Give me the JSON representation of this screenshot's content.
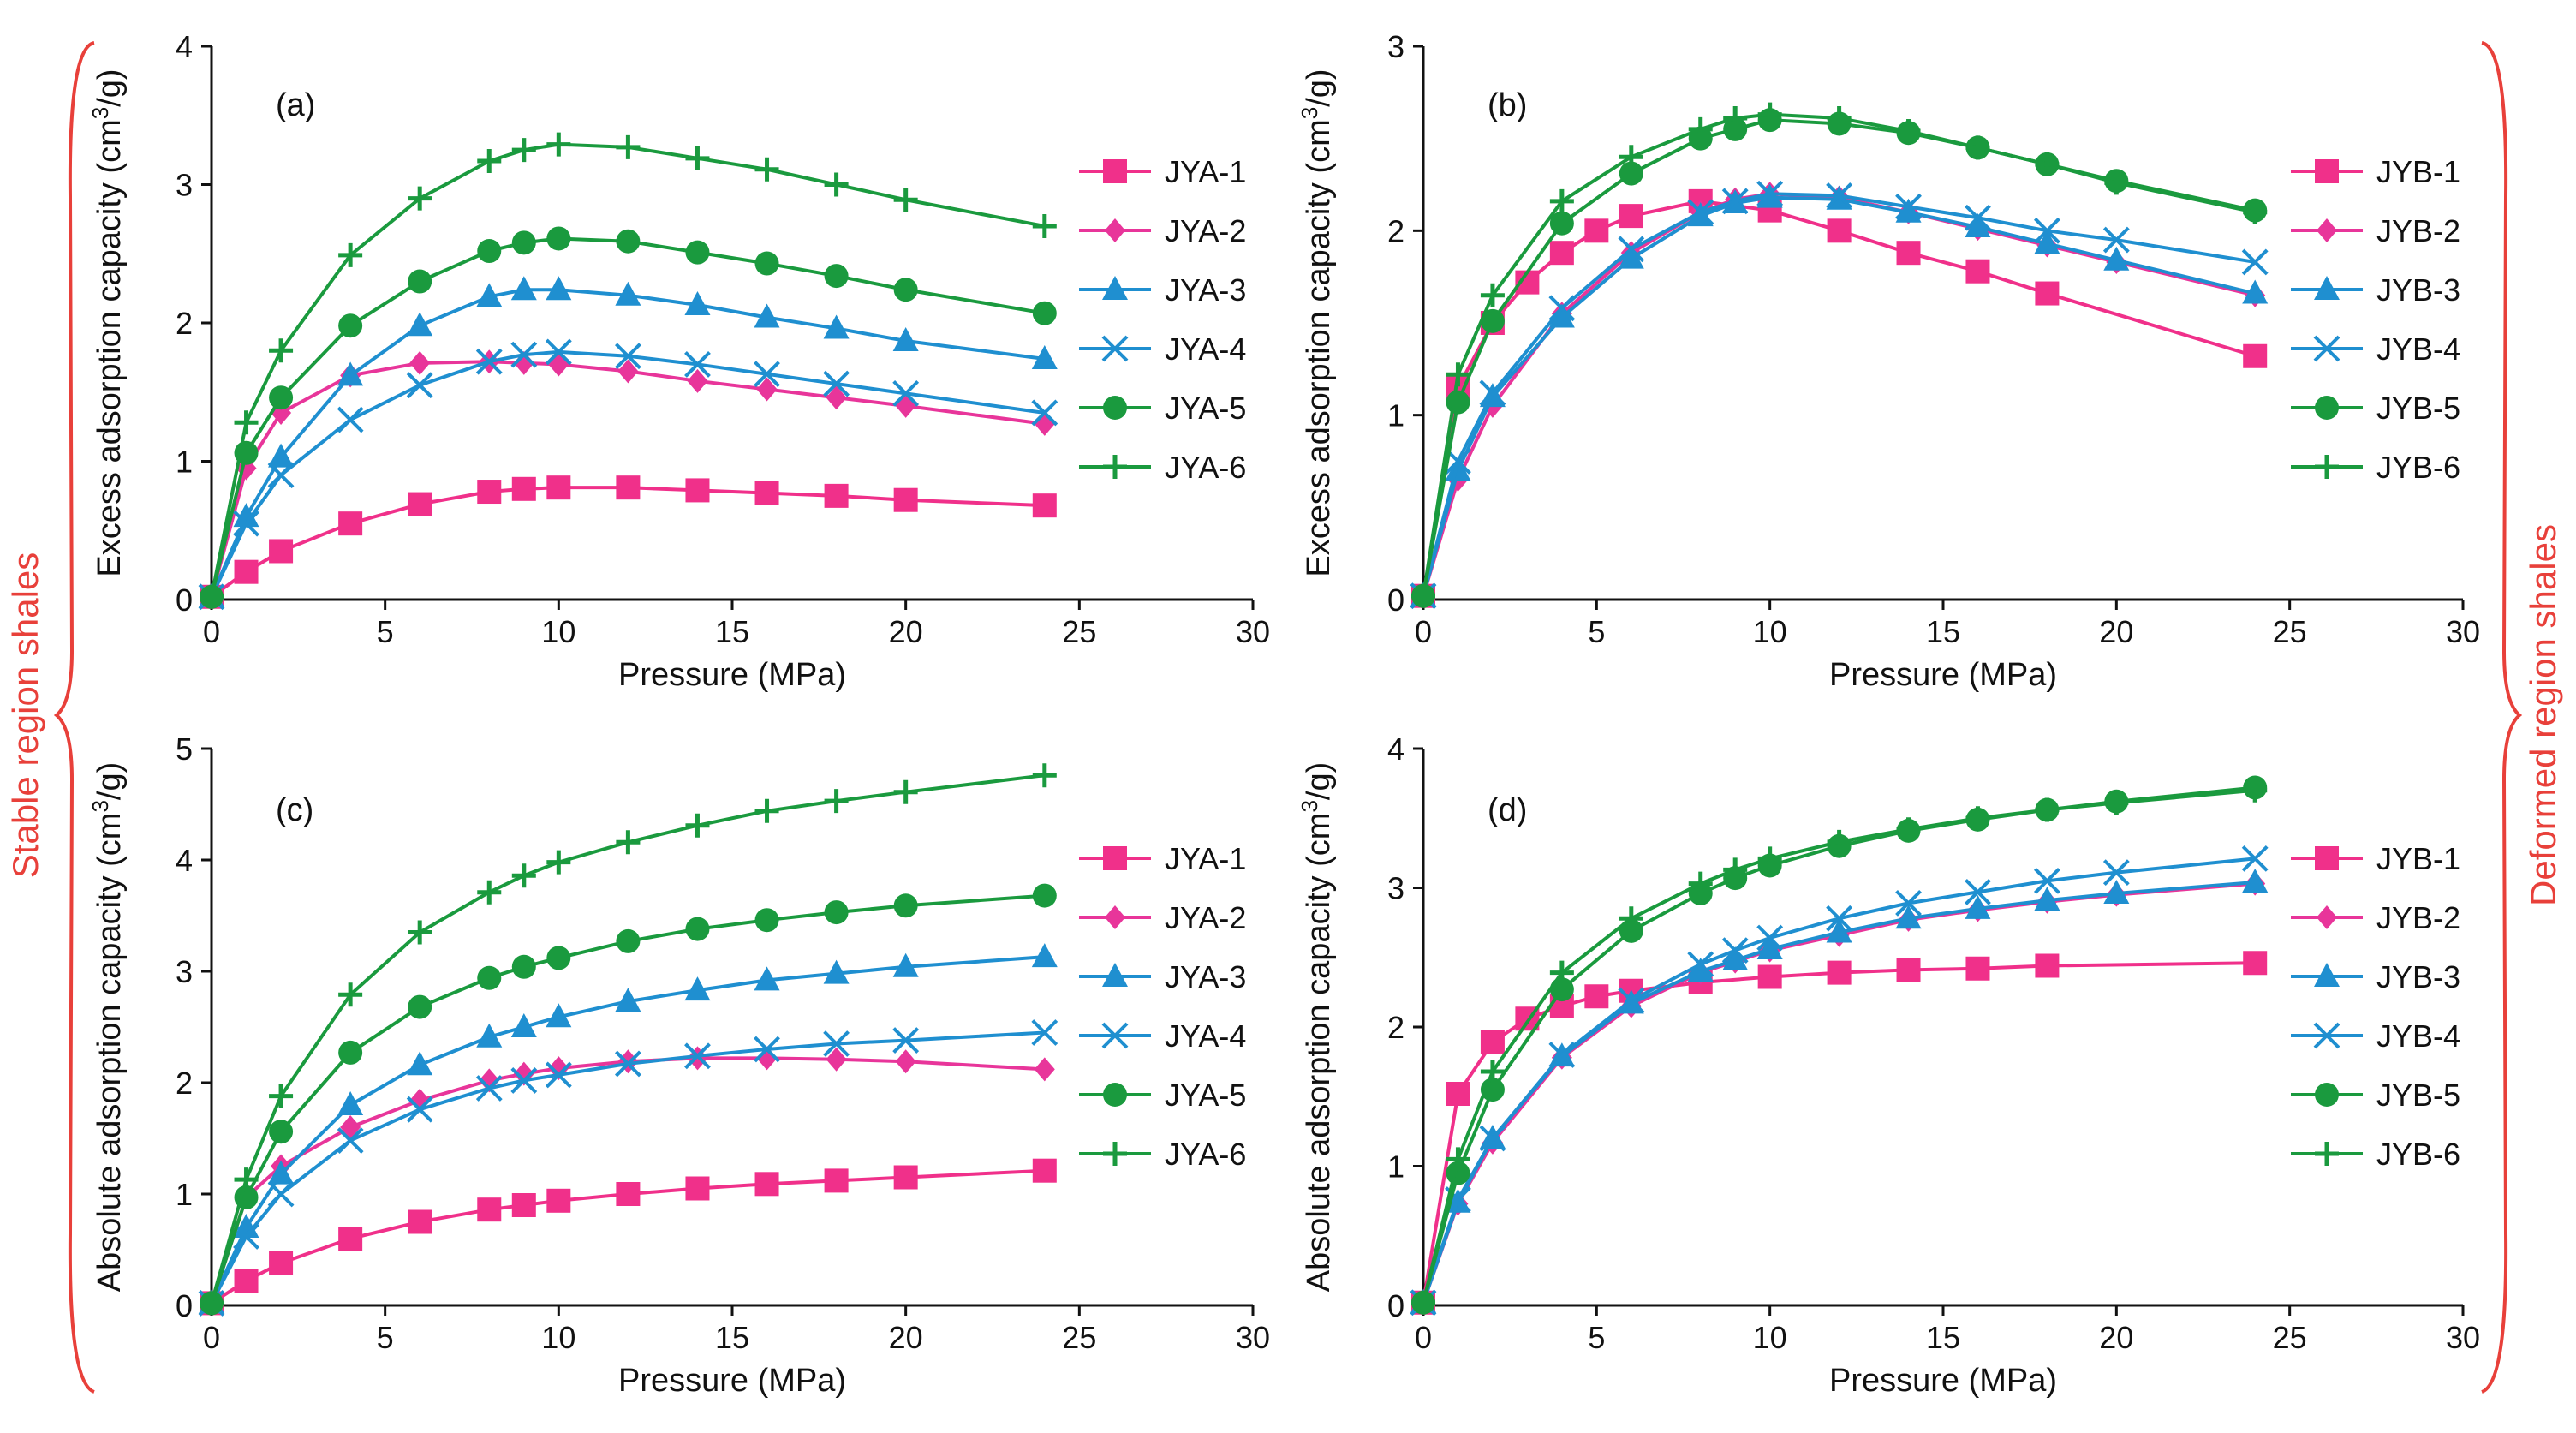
{
  "side_labels": {
    "left": "Stable region shales",
    "right": "Deformed region shales",
    "brace_color": "#e8403a"
  },
  "colors": {
    "1": "#f0308a",
    "2": "#e8359a",
    "3": "#1f8fd0",
    "4": "#1f8fd0",
    "5": "#1a9a3e",
    "6": "#1a9a3e"
  },
  "markers": {
    "1": "square",
    "2": "diamond",
    "3": "triangle",
    "4": "x",
    "5": "circle",
    "6": "plus"
  },
  "chart_data": [
    {
      "type": "line",
      "panel_label": "(a)",
      "xlabel": "Pressure (MPa)",
      "ylabel_main": "Excess adsorption capacity (cm",
      "ylabel_sup": "3",
      "ylabel_tail": "/g)",
      "xlim": [
        0,
        30
      ],
      "ylim": [
        0,
        4
      ],
      "xticks": [
        0,
        5,
        10,
        15,
        20,
        25,
        30
      ],
      "yticks": [
        0,
        1,
        2,
        3,
        4
      ],
      "series": [
        {
          "name": "JYA-1",
          "x": [
            0,
            1,
            2,
            4,
            6,
            8,
            9,
            10,
            12,
            14,
            16,
            18,
            20,
            24
          ],
          "y": [
            0.02,
            0.2,
            0.35,
            0.55,
            0.69,
            0.78,
            0.8,
            0.81,
            0.81,
            0.79,
            0.77,
            0.75,
            0.72,
            0.68
          ]
        },
        {
          "name": "JYA-2",
          "x": [
            0,
            1,
            2,
            4,
            6,
            8,
            9,
            10,
            12,
            14,
            16,
            18,
            20,
            24
          ],
          "y": [
            0.02,
            0.95,
            1.35,
            1.62,
            1.71,
            1.72,
            1.71,
            1.7,
            1.65,
            1.58,
            1.52,
            1.46,
            1.4,
            1.27
          ]
        },
        {
          "name": "JYA-3",
          "x": [
            0,
            1,
            2,
            4,
            6,
            8,
            9,
            10,
            12,
            14,
            16,
            18,
            20,
            24
          ],
          "y": [
            0.02,
            0.6,
            1.03,
            1.62,
            1.98,
            2.19,
            2.24,
            2.24,
            2.2,
            2.13,
            2.04,
            1.96,
            1.87,
            1.74
          ]
        },
        {
          "name": "JYA-4",
          "x": [
            0,
            1,
            2,
            4,
            6,
            8,
            9,
            10,
            12,
            14,
            16,
            18,
            20,
            24
          ],
          "y": [
            0.02,
            0.55,
            0.9,
            1.3,
            1.55,
            1.72,
            1.77,
            1.79,
            1.76,
            1.7,
            1.63,
            1.56,
            1.49,
            1.35
          ]
        },
        {
          "name": "JYA-5",
          "x": [
            0,
            1,
            2,
            4,
            6,
            8,
            9,
            10,
            12,
            14,
            16,
            18,
            20,
            24
          ],
          "y": [
            0.02,
            1.06,
            1.46,
            1.98,
            2.3,
            2.52,
            2.58,
            2.61,
            2.59,
            2.51,
            2.43,
            2.34,
            2.24,
            2.07
          ]
        },
        {
          "name": "JYA-6",
          "x": [
            0,
            1,
            2,
            4,
            6,
            8,
            9,
            10,
            12,
            14,
            16,
            18,
            20,
            24
          ],
          "y": [
            0.02,
            1.28,
            1.8,
            2.49,
            2.9,
            3.17,
            3.25,
            3.29,
            3.27,
            3.19,
            3.11,
            3.0,
            2.89,
            2.7
          ]
        }
      ]
    },
    {
      "type": "line",
      "panel_label": "(b)",
      "xlabel": "Pressure (MPa)",
      "ylabel_main": "Excess adsorption capacity (cm",
      "ylabel_sup": "3",
      "ylabel_tail": "/g)",
      "xlim": [
        0,
        30
      ],
      "ylim": [
        0,
        3
      ],
      "xticks": [
        0,
        5,
        10,
        15,
        20,
        25,
        30
      ],
      "yticks": [
        0,
        1,
        2,
        3
      ],
      "series": [
        {
          "name": "JYB-1",
          "x": [
            0,
            1,
            2,
            3,
            4,
            5,
            6,
            8,
            10,
            12,
            14,
            16,
            18,
            24
          ],
          "y": [
            0.02,
            1.15,
            1.5,
            1.72,
            1.88,
            2.0,
            2.08,
            2.16,
            2.11,
            2.0,
            1.88,
            1.78,
            1.66,
            1.32
          ]
        },
        {
          "name": "JYB-2",
          "x": [
            0,
            1,
            2,
            4,
            6,
            8,
            9,
            10,
            12,
            14,
            16,
            18,
            20,
            24
          ],
          "y": [
            0.02,
            0.65,
            1.05,
            1.55,
            1.88,
            2.1,
            2.17,
            2.2,
            2.18,
            2.1,
            2.01,
            1.92,
            1.83,
            1.65
          ]
        },
        {
          "name": "JYB-3",
          "x": [
            0,
            1,
            2,
            4,
            6,
            8,
            9,
            10,
            12,
            14,
            16,
            18,
            20,
            24
          ],
          "y": [
            0.02,
            0.7,
            1.1,
            1.53,
            1.85,
            2.08,
            2.15,
            2.18,
            2.17,
            2.1,
            2.02,
            1.93,
            1.84,
            1.66
          ]
        },
        {
          "name": "JYB-4",
          "x": [
            0,
            1,
            2,
            4,
            6,
            8,
            9,
            10,
            12,
            14,
            16,
            18,
            20,
            24
          ],
          "y": [
            0.02,
            0.75,
            1.12,
            1.58,
            1.9,
            2.1,
            2.16,
            2.2,
            2.19,
            2.13,
            2.07,
            2.0,
            1.95,
            1.83
          ]
        },
        {
          "name": "JYB-5",
          "x": [
            0,
            1,
            2,
            4,
            6,
            8,
            9,
            10,
            12,
            14,
            16,
            18,
            20,
            24
          ],
          "y": [
            0.02,
            1.07,
            1.51,
            2.04,
            2.31,
            2.5,
            2.55,
            2.6,
            2.58,
            2.53,
            2.45,
            2.36,
            2.27,
            2.11
          ]
        },
        {
          "name": "JYB-6",
          "x": [
            0,
            1,
            2,
            4,
            6,
            8,
            9,
            10,
            12,
            14,
            16,
            18,
            20,
            24
          ],
          "y": [
            0.02,
            1.22,
            1.65,
            2.16,
            2.4,
            2.55,
            2.61,
            2.63,
            2.61,
            2.54,
            2.45,
            2.36,
            2.26,
            2.1
          ]
        }
      ]
    },
    {
      "type": "line",
      "panel_label": "(c)",
      "xlabel": "Pressure (MPa)",
      "ylabel_main": "Absolute adsorption capacity (cm",
      "ylabel_sup": "3",
      "ylabel_tail": "/g)",
      "xlim": [
        0,
        30
      ],
      "ylim": [
        0,
        5
      ],
      "xticks": [
        0,
        5,
        10,
        15,
        20,
        25,
        30
      ],
      "yticks": [
        0,
        1,
        2,
        3,
        4,
        5
      ],
      "series": [
        {
          "name": "JYA-1",
          "x": [
            0,
            1,
            2,
            4,
            6,
            8,
            9,
            10,
            12,
            14,
            16,
            18,
            20,
            24
          ],
          "y": [
            0.02,
            0.22,
            0.38,
            0.6,
            0.75,
            0.86,
            0.9,
            0.94,
            1.0,
            1.05,
            1.09,
            1.12,
            1.15,
            1.21
          ]
        },
        {
          "name": "JYA-2",
          "x": [
            0,
            1,
            2,
            4,
            6,
            8,
            9,
            10,
            12,
            14,
            16,
            18,
            20,
            24
          ],
          "y": [
            0.02,
            0.97,
            1.25,
            1.6,
            1.84,
            2.02,
            2.08,
            2.13,
            2.19,
            2.22,
            2.22,
            2.21,
            2.19,
            2.12
          ]
        },
        {
          "name": "JYA-3",
          "x": [
            0,
            1,
            2,
            4,
            6,
            8,
            9,
            10,
            12,
            14,
            16,
            18,
            20,
            24
          ],
          "y": [
            0.02,
            0.7,
            1.18,
            1.8,
            2.16,
            2.41,
            2.5,
            2.59,
            2.73,
            2.83,
            2.92,
            2.98,
            3.04,
            3.13
          ]
        },
        {
          "name": "JYA-4",
          "x": [
            0,
            1,
            2,
            4,
            6,
            8,
            9,
            10,
            12,
            14,
            16,
            18,
            20,
            24
          ],
          "y": [
            0.02,
            0.62,
            1.0,
            1.48,
            1.76,
            1.95,
            2.02,
            2.07,
            2.17,
            2.24,
            2.3,
            2.35,
            2.38,
            2.45
          ]
        },
        {
          "name": "JYA-5",
          "x": [
            0,
            1,
            2,
            4,
            6,
            8,
            9,
            10,
            12,
            14,
            16,
            18,
            20,
            24
          ],
          "y": [
            0.02,
            0.97,
            1.56,
            2.27,
            2.68,
            2.94,
            3.04,
            3.12,
            3.27,
            3.38,
            3.46,
            3.53,
            3.59,
            3.68
          ]
        },
        {
          "name": "JYA-6",
          "x": [
            0,
            1,
            2,
            4,
            6,
            8,
            9,
            10,
            12,
            14,
            16,
            18,
            20,
            24
          ],
          "y": [
            0.02,
            1.13,
            1.88,
            2.79,
            3.35,
            3.71,
            3.86,
            3.98,
            4.16,
            4.31,
            4.44,
            4.53,
            4.61,
            4.76
          ]
        }
      ]
    },
    {
      "type": "line",
      "panel_label": "(d)",
      "xlabel": "Pressure (MPa)",
      "ylabel_main": "Absolute adsorption capacity (cm",
      "ylabel_sup": "3",
      "ylabel_tail": "/g)",
      "xlim": [
        0,
        30
      ],
      "ylim": [
        0,
        4
      ],
      "xticks": [
        0,
        5,
        10,
        15,
        20,
        25,
        30
      ],
      "yticks": [
        0,
        1,
        2,
        3,
        4
      ],
      "series": [
        {
          "name": "JYB-1",
          "x": [
            0,
            1,
            2,
            3,
            4,
            5,
            6,
            8,
            10,
            12,
            14,
            16,
            18,
            24
          ],
          "y": [
            0.02,
            1.52,
            1.89,
            2.06,
            2.15,
            2.22,
            2.26,
            2.32,
            2.36,
            2.39,
            2.41,
            2.42,
            2.44,
            2.46
          ]
        },
        {
          "name": "JYB-2",
          "x": [
            0,
            1,
            2,
            4,
            6,
            8,
            9,
            10,
            12,
            14,
            16,
            18,
            20,
            24
          ],
          "y": [
            0.02,
            0.73,
            1.17,
            1.78,
            2.15,
            2.39,
            2.47,
            2.55,
            2.66,
            2.77,
            2.84,
            2.9,
            2.95,
            3.03
          ]
        },
        {
          "name": "JYB-3",
          "x": [
            0,
            1,
            2,
            4,
            6,
            8,
            9,
            10,
            12,
            14,
            16,
            18,
            20,
            24
          ],
          "y": [
            0.02,
            0.74,
            1.2,
            1.79,
            2.17,
            2.4,
            2.48,
            2.56,
            2.68,
            2.78,
            2.85,
            2.91,
            2.96,
            3.04
          ]
        },
        {
          "name": "JYB-4",
          "x": [
            0,
            1,
            2,
            4,
            6,
            8,
            9,
            10,
            12,
            14,
            16,
            18,
            20,
            24
          ],
          "y": [
            0.02,
            0.76,
            1.2,
            1.8,
            2.19,
            2.45,
            2.55,
            2.64,
            2.78,
            2.89,
            2.97,
            3.05,
            3.11,
            3.21
          ]
        },
        {
          "name": "JYB-5",
          "x": [
            0,
            1,
            2,
            4,
            6,
            8,
            9,
            10,
            12,
            14,
            16,
            18,
            20,
            24
          ],
          "y": [
            0.02,
            0.95,
            1.55,
            2.27,
            2.69,
            2.96,
            3.07,
            3.16,
            3.3,
            3.41,
            3.49,
            3.56,
            3.62,
            3.72
          ]
        },
        {
          "name": "JYB-6",
          "x": [
            0,
            1,
            2,
            4,
            6,
            8,
            9,
            10,
            12,
            14,
            16,
            18,
            20,
            24
          ],
          "y": [
            0.02,
            1.05,
            1.68,
            2.39,
            2.78,
            3.03,
            3.13,
            3.21,
            3.33,
            3.42,
            3.5,
            3.56,
            3.61,
            3.7
          ]
        }
      ]
    }
  ]
}
